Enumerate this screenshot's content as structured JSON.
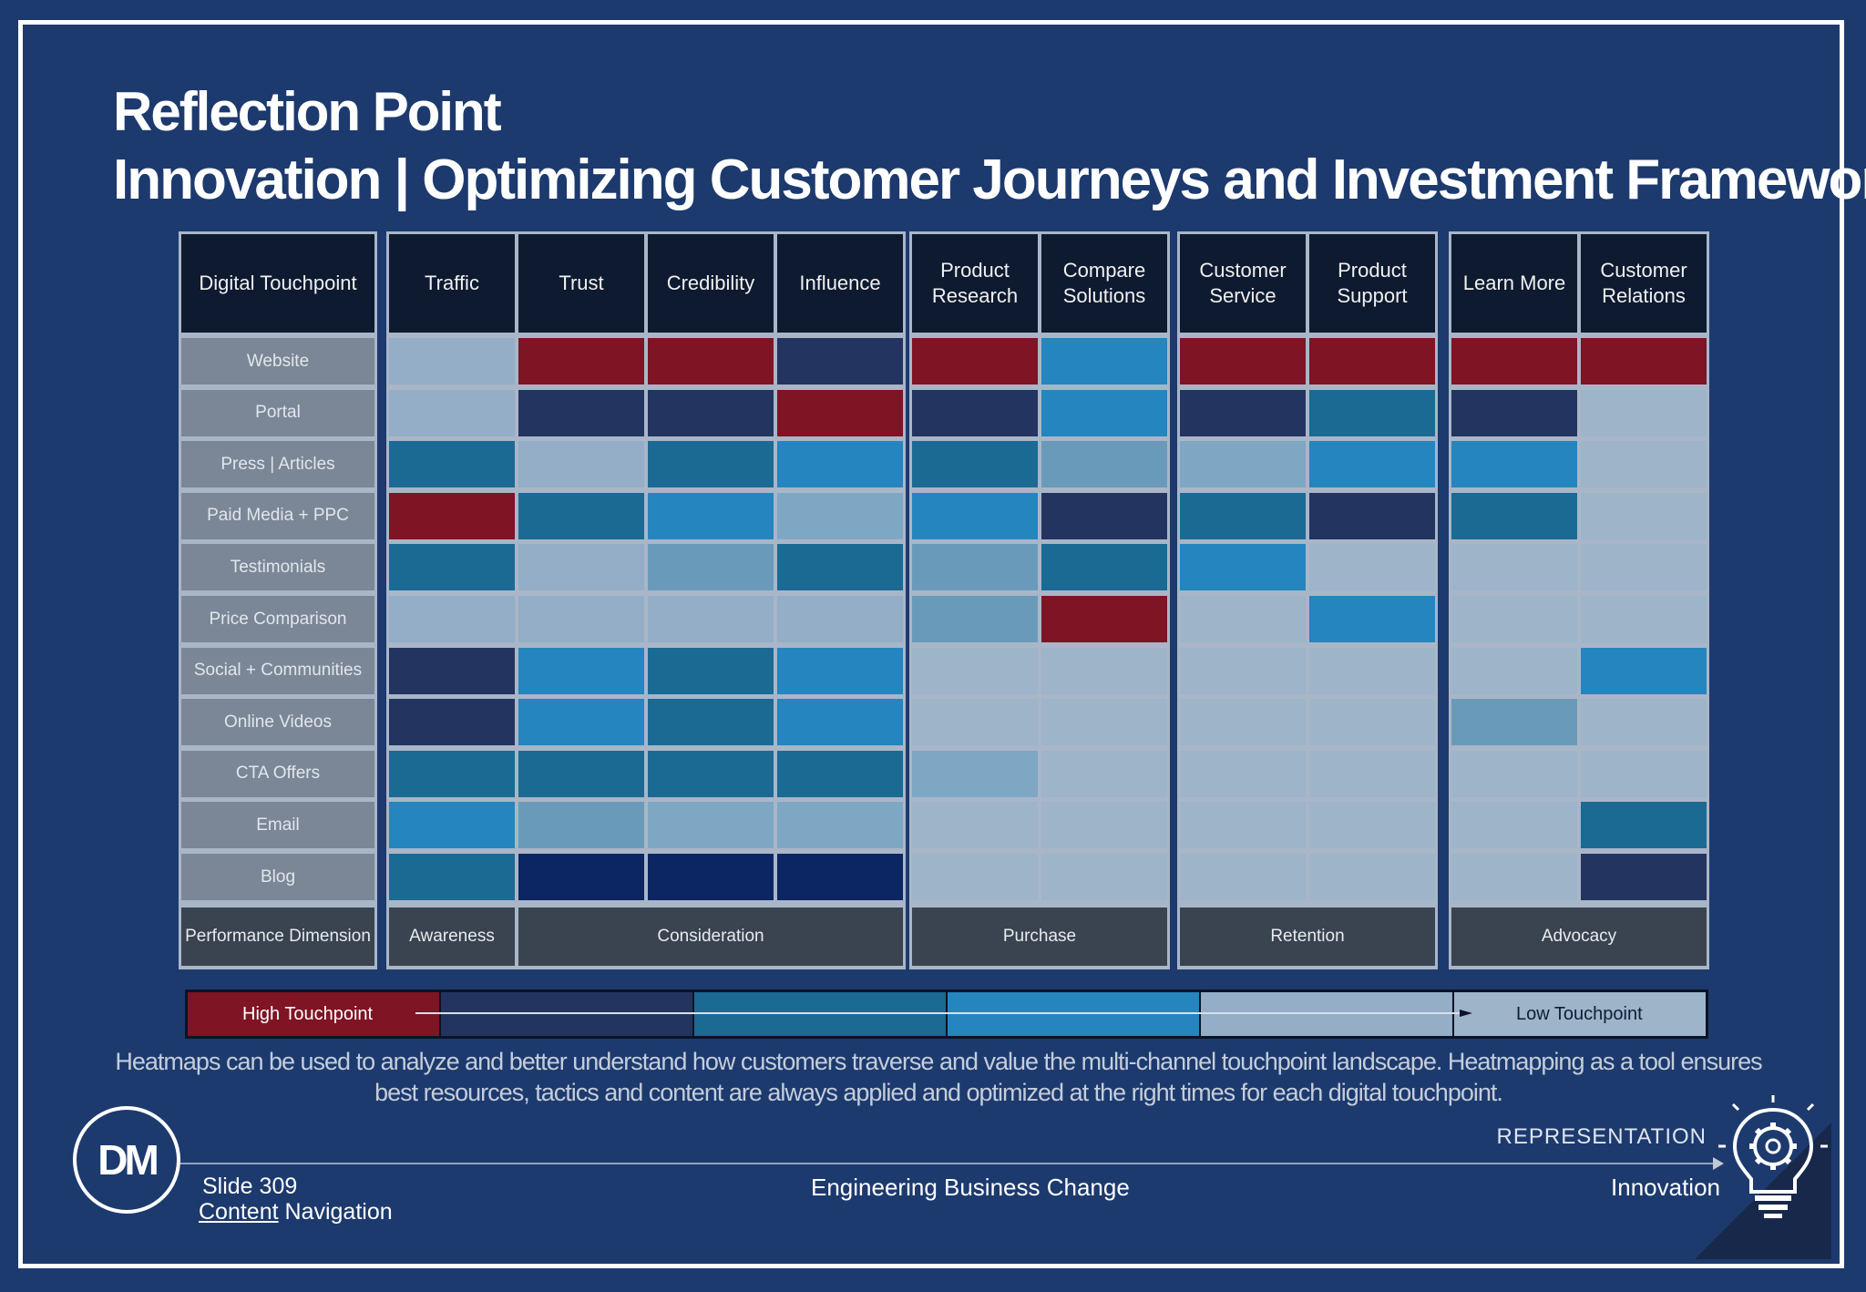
{
  "title": {
    "line1": "Reflection Point",
    "line2": "Innovation | Optimizing Customer Journeys and Investment Framework."
  },
  "palette": {
    "red": "#7e1424",
    "navy": "#243460",
    "deepnavy": "#0b2662",
    "teal": "#1a6a94",
    "blue": "#2585bf",
    "steel": "#6a9ab9",
    "lightsteel": "#7ea7c4",
    "pale": "#93aec6",
    "paler": "#9db4c9"
  },
  "table": {
    "touchpoint_header": "Digital Touchpoint",
    "rows": [
      "Website",
      "Portal",
      "Press | Articles",
      "Paid Media + PPC",
      "Testimonials",
      "Price Comparison",
      "Social + Communities",
      "Online Videos",
      "CTA Offers",
      "Email",
      "Blog"
    ],
    "performance_label": "Performance Dimension",
    "blocks": [
      {
        "dimension": "Awareness",
        "columns": [
          {
            "label": "Traffic",
            "cells": [
              "pale",
              "pale",
              "teal",
              "red",
              "teal",
              "pale",
              "navy",
              "navy",
              "teal",
              "blue",
              "teal"
            ]
          }
        ]
      },
      {
        "dimension": "Consideration",
        "columns": [
          {
            "label": "Trust",
            "cells": [
              "red",
              "navy",
              "pale",
              "teal",
              "pale",
              "pale",
              "blue",
              "blue",
              "teal",
              "steel",
              "deepnavy"
            ]
          },
          {
            "label": "Credibility",
            "cells": [
              "red",
              "navy",
              "teal",
              "blue",
              "steel",
              "pale",
              "teal",
              "teal",
              "teal",
              "lightsteel",
              "deepnavy"
            ]
          },
          {
            "label": "Influence",
            "cells": [
              "navy",
              "red",
              "blue",
              "lightsteel",
              "teal",
              "pale",
              "blue",
              "blue",
              "teal",
              "lightsteel",
              "deepnavy"
            ]
          }
        ]
      },
      {
        "dimension": "Purchase",
        "columns": [
          {
            "label": "Product Research",
            "cells": [
              "red",
              "navy",
              "teal",
              "blue",
              "steel",
              "steel",
              "paler",
              "paler",
              "lightsteel",
              "paler",
              "paler"
            ]
          },
          {
            "label": "Compare Solutions",
            "cells": [
              "blue",
              "blue",
              "steel",
              "navy",
              "teal",
              "red",
              "paler",
              "paler",
              "paler",
              "paler",
              "paler"
            ]
          }
        ]
      },
      {
        "dimension": "Retention",
        "columns": [
          {
            "label": "Customer Service",
            "cells": [
              "red",
              "navy",
              "lightsteel",
              "teal",
              "blue",
              "paler",
              "paler",
              "paler",
              "paler",
              "paler",
              "paler"
            ]
          },
          {
            "label": "Product Support",
            "cells": [
              "red",
              "teal",
              "blue",
              "navy",
              "paler",
              "blue",
              "paler",
              "paler",
              "paler",
              "paler",
              "paler"
            ]
          }
        ]
      },
      {
        "dimension": "Advocacy",
        "columns": [
          {
            "label": "Learn More",
            "cells": [
              "red",
              "navy",
              "blue",
              "teal",
              "paler",
              "paler",
              "paler",
              "steel",
              "paler",
              "paler",
              "paler"
            ]
          },
          {
            "label": "Customer Relations",
            "cells": [
              "red",
              "paler",
              "paler",
              "paler",
              "paler",
              "paler",
              "blue",
              "paler",
              "paler",
              "teal",
              "navy"
            ]
          }
        ]
      }
    ]
  },
  "legend": {
    "high": "High Touchpoint",
    "low": "Low Touchpoint",
    "scale": [
      "red",
      "navy",
      "teal",
      "blue",
      "pale",
      "paler"
    ]
  },
  "caption": {
    "line1": "Heatmaps can be used to analyze and better understand how customers traverse and value the multi-channel touchpoint landscape.  Heatmapping as a tool ensures",
    "line2": "best resources, tactics and content are always applied and optimized at the right times for each digital touchpoint."
  },
  "footer": {
    "logo": "DM",
    "slide": "Slide 309",
    "content_link": "Content",
    "navigation": " Navigation",
    "center": "Engineering Business Change",
    "representation": "REPRESENTATION",
    "innovation": "Innovation"
  }
}
